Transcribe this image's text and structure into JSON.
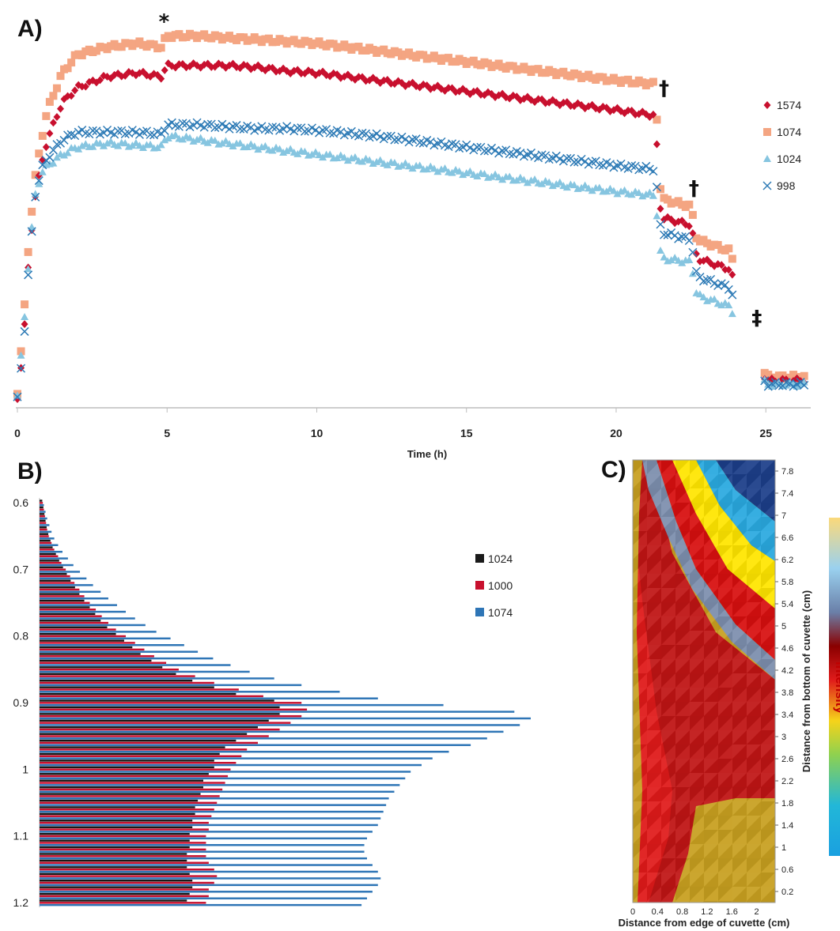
{
  "panels": {
    "a": {
      "label": "A)"
    },
    "b": {
      "label": "B)"
    },
    "c": {
      "label": "C)"
    }
  },
  "chart_data": [
    {
      "type": "scatter",
      "panel": "A)",
      "xlabel": "Time (h)",
      "ylabel": "",
      "xlim": [
        0,
        26.5
      ],
      "ylim": [
        0,
        1
      ],
      "x_ticks": [
        "0",
        "5",
        "10",
        "15",
        "20",
        "25"
      ],
      "annotations": [
        {
          "text": "*",
          "x": 4.9,
          "y": 1.0
        },
        {
          "text": "†",
          "x": 21.6,
          "y": 0.82
        },
        {
          "text": "†",
          "x": 22.6,
          "y": 0.55
        },
        {
          "text": "‡",
          "x": 24.7,
          "y": 0.2
        }
      ],
      "legend_position": "right",
      "series": [
        {
          "name": "1574",
          "marker": "diamond",
          "color": "#c8102e",
          "x": [
            0,
            0.2,
            0.4,
            0.6,
            0.8,
            1.0,
            1.5,
            2,
            3,
            4,
            4.8,
            5.0,
            6,
            7,
            8,
            9,
            10,
            12,
            14,
            16,
            18,
            20,
            21.3,
            21.5,
            22.5,
            22.7,
            23.8,
            25.0,
            26.3
          ],
          "y": [
            0.0,
            0.15,
            0.4,
            0.55,
            0.63,
            0.7,
            0.8,
            0.84,
            0.87,
            0.88,
            0.87,
            0.9,
            0.9,
            0.9,
            0.895,
            0.885,
            0.88,
            0.86,
            0.84,
            0.82,
            0.8,
            0.78,
            0.765,
            0.49,
            0.47,
            0.38,
            0.35,
            0.05,
            0.05
          ]
        },
        {
          "name": "1074",
          "marker": "square",
          "color": "#f4a582",
          "x": [
            0,
            0.2,
            0.4,
            0.6,
            0.8,
            1.0,
            1.5,
            2,
            3,
            4,
            4.8,
            5.0,
            6,
            7,
            8,
            9,
            10,
            12,
            14,
            16,
            18,
            20,
            21.3,
            21.5,
            22.5,
            22.7,
            23.8,
            25.0,
            26.3
          ],
          "y": [
            0.02,
            0.2,
            0.45,
            0.6,
            0.7,
            0.78,
            0.88,
            0.93,
            0.95,
            0.96,
            0.95,
            0.98,
            0.98,
            0.975,
            0.97,
            0.965,
            0.96,
            0.94,
            0.92,
            0.9,
            0.88,
            0.86,
            0.85,
            0.54,
            0.52,
            0.43,
            0.4,
            0.06,
            0.06
          ]
        },
        {
          "name": "1024",
          "marker": "triangle",
          "color": "#86c5e0",
          "x": [
            0,
            0.2,
            0.4,
            0.6,
            0.8,
            1.0,
            1.5,
            2,
            3,
            4,
            4.8,
            5.0,
            6,
            7,
            8,
            9,
            10,
            12,
            14,
            16,
            18,
            20,
            21.3,
            21.5,
            22.5,
            22.7,
            23.8,
            25.0,
            26.3
          ],
          "y": [
            0.01,
            0.18,
            0.4,
            0.55,
            0.61,
            0.63,
            0.66,
            0.68,
            0.69,
            0.685,
            0.68,
            0.71,
            0.7,
            0.69,
            0.68,
            0.67,
            0.66,
            0.64,
            0.62,
            0.6,
            0.58,
            0.56,
            0.55,
            0.38,
            0.37,
            0.28,
            0.25,
            0.04,
            0.04
          ]
        },
        {
          "name": "998",
          "marker": "x",
          "color": "#2e7bb6",
          "x": [
            0,
            0.2,
            0.4,
            0.6,
            0.8,
            1.0,
            1.5,
            2,
            3,
            4,
            4.8,
            5.0,
            6,
            7,
            8,
            9,
            10,
            12,
            14,
            16,
            18,
            20,
            21.3,
            21.5,
            22.5,
            22.7,
            23.8,
            25.0,
            26.3
          ],
          "y": [
            0.0,
            0.14,
            0.38,
            0.55,
            0.62,
            0.65,
            0.7,
            0.72,
            0.72,
            0.72,
            0.715,
            0.74,
            0.74,
            0.735,
            0.73,
            0.73,
            0.725,
            0.71,
            0.69,
            0.67,
            0.65,
            0.63,
            0.62,
            0.45,
            0.43,
            0.33,
            0.3,
            0.04,
            0.04
          ]
        }
      ]
    },
    {
      "type": "bar",
      "orientation": "horizontal",
      "panel": "B)",
      "xlabel": "",
      "ylabel": "",
      "ylim": [
        0.6,
        1.2
      ],
      "y_ticks": [
        "0.6",
        "0.7",
        "0.8",
        "0.9",
        "1",
        "1.1",
        "1.2"
      ],
      "xlim": [
        0,
        1
      ],
      "legend_position": "right",
      "categories": [
        0.6,
        0.61,
        0.62,
        0.63,
        0.64,
        0.65,
        0.66,
        0.67,
        0.68,
        0.69,
        0.7,
        0.71,
        0.72,
        0.73,
        0.74,
        0.75,
        0.76,
        0.77,
        0.78,
        0.79,
        0.8,
        0.81,
        0.82,
        0.83,
        0.84,
        0.85,
        0.86,
        0.87,
        0.88,
        0.89,
        0.9,
        0.91,
        0.92,
        0.93,
        0.94,
        0.95,
        0.96,
        0.97,
        0.98,
        0.99,
        1.0,
        1.01,
        1.02,
        1.03,
        1.04,
        1.05,
        1.06,
        1.07,
        1.08,
        1.09,
        1.1,
        1.11,
        1.12,
        1.13,
        1.14,
        1.15,
        1.16,
        1.17,
        1.18,
        1.19,
        1.2
      ],
      "series": [
        {
          "name": "1024",
          "color": "#1a1a1a",
          "values": [
            0.005,
            0.007,
            0.009,
            0.011,
            0.013,
            0.016,
            0.02,
            0.024,
            0.03,
            0.036,
            0.043,
            0.05,
            0.057,
            0.065,
            0.073,
            0.082,
            0.092,
            0.102,
            0.112,
            0.124,
            0.14,
            0.155,
            0.17,
            0.185,
            0.205,
            0.225,
            0.25,
            0.28,
            0.32,
            0.36,
            0.43,
            0.44,
            0.44,
            0.42,
            0.4,
            0.38,
            0.36,
            0.34,
            0.33,
            0.32,
            0.32,
            0.31,
            0.3,
            0.3,
            0.295,
            0.29,
            0.285,
            0.285,
            0.28,
            0.28,
            0.275,
            0.275,
            0.275,
            0.27,
            0.27,
            0.27,
            0.275,
            0.28,
            0.28,
            0.275,
            0.27
          ]
        },
        {
          "name": "1000",
          "color": "#c8102e",
          "values": [
            0.006,
            0.008,
            0.01,
            0.012,
            0.014,
            0.017,
            0.022,
            0.027,
            0.034,
            0.04,
            0.048,
            0.056,
            0.064,
            0.073,
            0.082,
            0.092,
            0.103,
            0.114,
            0.126,
            0.14,
            0.158,
            0.175,
            0.192,
            0.21,
            0.232,
            0.255,
            0.285,
            0.32,
            0.365,
            0.41,
            0.48,
            0.49,
            0.48,
            0.46,
            0.44,
            0.42,
            0.4,
            0.38,
            0.37,
            0.36,
            0.35,
            0.345,
            0.34,
            0.335,
            0.33,
            0.325,
            0.32,
            0.315,
            0.31,
            0.31,
            0.305,
            0.305,
            0.305,
            0.305,
            0.31,
            0.32,
            0.325,
            0.32,
            0.31,
            0.31,
            0.305
          ]
        },
        {
          "name": "1074",
          "color": "#2e75b6",
          "values": [
            0.008,
            0.011,
            0.014,
            0.018,
            0.022,
            0.027,
            0.034,
            0.042,
            0.052,
            0.062,
            0.074,
            0.086,
            0.098,
            0.112,
            0.126,
            0.142,
            0.158,
            0.175,
            0.194,
            0.214,
            0.24,
            0.265,
            0.29,
            0.318,
            0.35,
            0.385,
            0.43,
            0.48,
            0.55,
            0.62,
            0.74,
            0.87,
            0.9,
            0.88,
            0.85,
            0.82,
            0.79,
            0.75,
            0.72,
            0.7,
            0.68,
            0.67,
            0.66,
            0.65,
            0.64,
            0.635,
            0.63,
            0.625,
            0.62,
            0.61,
            0.6,
            0.595,
            0.595,
            0.6,
            0.61,
            0.62,
            0.625,
            0.62,
            0.61,
            0.6,
            0.59
          ]
        }
      ]
    },
    {
      "type": "heatmap",
      "panel": "C)",
      "xlabel": "Distance  from edge of cuvette (cm)",
      "ylabel": "Distance  from bottom of cuvette (cm)",
      "xlim": [
        0,
        2.3
      ],
      "ylim": [
        0,
        8
      ],
      "x_ticks": [
        "0",
        "0.4",
        "0.8",
        "1.2",
        "1.6",
        "2"
      ],
      "y_ticks": [
        "0.2",
        "0.6",
        "1",
        "1.4",
        "1.8",
        "2.2",
        "2.6",
        "3",
        "3.4",
        "3.8",
        "4.2",
        "4.6",
        "5",
        "5.4",
        "5.8",
        "6.2",
        "6.6",
        "7",
        "7.4",
        "7.8"
      ],
      "colorbar_title": "intensity",
      "colors": [
        "#1d3f8a",
        "#2aa9e0",
        "#ffe600",
        "#e30613",
        "#8b0000",
        "#c8a020"
      ]
    }
  ]
}
